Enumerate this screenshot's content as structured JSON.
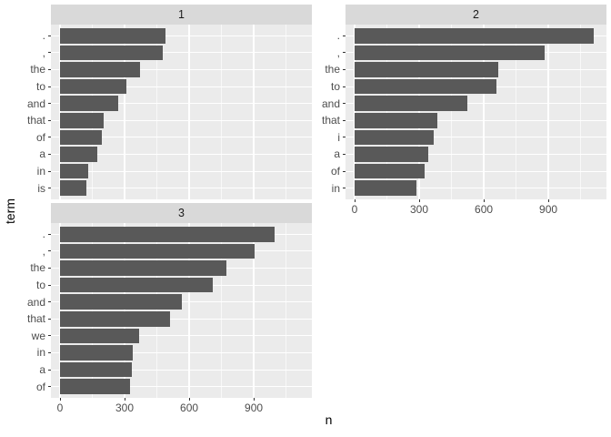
{
  "chart_data": {
    "type": "bar",
    "orientation": "horizontal",
    "title": "",
    "xlabel": "n",
    "ylabel": "term",
    "x_ticks": [
      0,
      300,
      600,
      900
    ],
    "x_minor_ticks": [
      150,
      450,
      750,
      1050
    ],
    "xlim": [
      0,
      1170
    ],
    "grid": "on",
    "legend": "none",
    "facet_layout": "wrap-2-cols",
    "colors": {
      "bar_fill": "#595959",
      "panel_background": "#ebebeb",
      "strip_background": "#d9d9d9",
      "gridline": "#ffffff",
      "tick_text": "#4d4d4d",
      "strip_text": "#1a1a1a",
      "axis_title_text": "#000000"
    },
    "facets": [
      {
        "title": "1",
        "show_x_axis": false,
        "categories": [
          ".",
          ",",
          "the",
          "to",
          "and",
          "that",
          "of",
          "a",
          "in",
          "is"
        ],
        "values": [
          488,
          478,
          372,
          310,
          272,
          204,
          194,
          175,
          130,
          123
        ]
      },
      {
        "title": "2",
        "show_x_axis": true,
        "categories": [
          ".",
          ",",
          "the",
          "to",
          "and",
          "that",
          "i",
          "a",
          "of",
          "in"
        ],
        "values": [
          1110,
          881,
          666,
          660,
          525,
          386,
          366,
          344,
          327,
          286
        ]
      },
      {
        "title": "3",
        "show_x_axis": true,
        "categories": [
          ".",
          ",",
          "the",
          "to",
          "and",
          "that",
          "we",
          "in",
          "a",
          "of"
        ],
        "values": [
          996,
          904,
          772,
          709,
          565,
          511,
          367,
          338,
          333,
          324
        ]
      }
    ]
  }
}
